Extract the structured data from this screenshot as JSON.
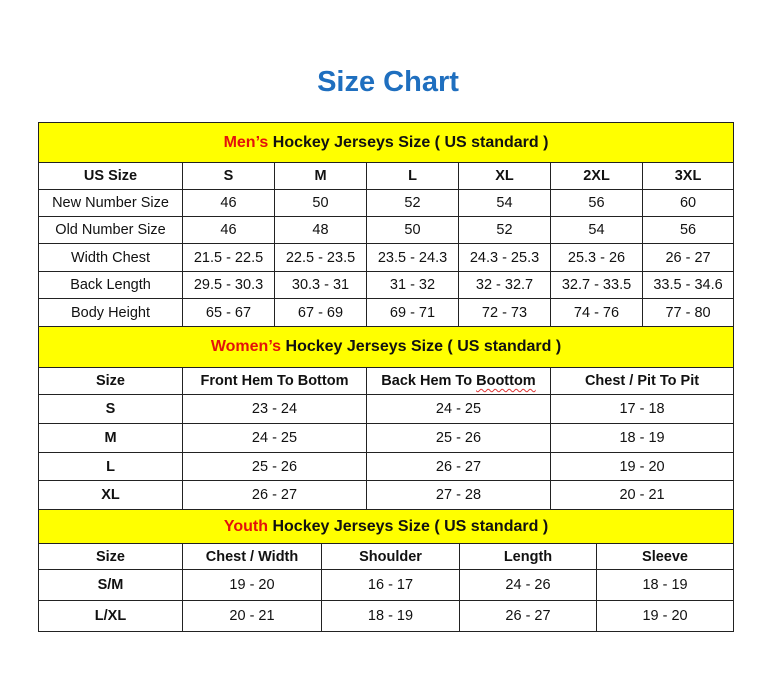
{
  "title": "Size Chart",
  "colors": {
    "title": "#1f6fbf",
    "band": "#ffff00",
    "highlight": "#e3120b"
  },
  "men": {
    "band_highlight": "Men’s",
    "band_rest": " Hockey Jerseys Size ( US standard )",
    "headers": [
      "US Size",
      "S",
      "M",
      "L",
      "XL",
      "2XL",
      "3XL"
    ],
    "rows": [
      [
        "New Number Size",
        "46",
        "50",
        "52",
        "54",
        "56",
        "60"
      ],
      [
        "Old Number Size",
        "46",
        "48",
        "50",
        "52",
        "54",
        "56"
      ],
      [
        "Width Chest",
        "21.5 - 22.5",
        "22.5 - 23.5",
        "23.5 - 24.3",
        "24.3 - 25.3",
        "25.3 - 26",
        "26 - 27"
      ],
      [
        "Back Length",
        "29.5 - 30.3",
        "30.3 - 31",
        "31 - 32",
        "32 - 32.7",
        "32.7 - 33.5",
        "33.5 - 34.6"
      ],
      [
        "Body Height",
        "65 - 67",
        "67 - 69",
        "69 - 71",
        "72 - 73",
        "74 - 76",
        "77 - 80"
      ]
    ]
  },
  "women": {
    "band_highlight": "Women’s",
    "band_rest": " Hockey Jerseys Size ( US standard )",
    "headers": [
      "Size",
      "Front Hem To Bottom",
      "Back Hem To Boottom",
      "Chest / Pit To Pit"
    ],
    "rows": [
      [
        "S",
        "23 - 24",
        "24 - 25",
        "17 - 18"
      ],
      [
        "M",
        "24 - 25",
        "25 - 26",
        "18 - 19"
      ],
      [
        "L",
        "25 - 26",
        "26 - 27",
        "19 - 20"
      ],
      [
        "XL",
        "26 - 27",
        "27 - 28",
        "20 - 21"
      ]
    ]
  },
  "youth": {
    "band_highlight": "Youth",
    "band_rest": " Hockey Jerseys Size ( US standard )",
    "headers": [
      "Size",
      "Chest / Width",
      "Shoulder",
      "Length",
      "Sleeve"
    ],
    "rows": [
      [
        "S/M",
        "19 - 20",
        "16 - 17",
        "24 - 26",
        "18 - 19"
      ],
      [
        "L/XL",
        "20 - 21",
        "18 - 19",
        "26 - 27",
        "19 - 20"
      ]
    ]
  }
}
